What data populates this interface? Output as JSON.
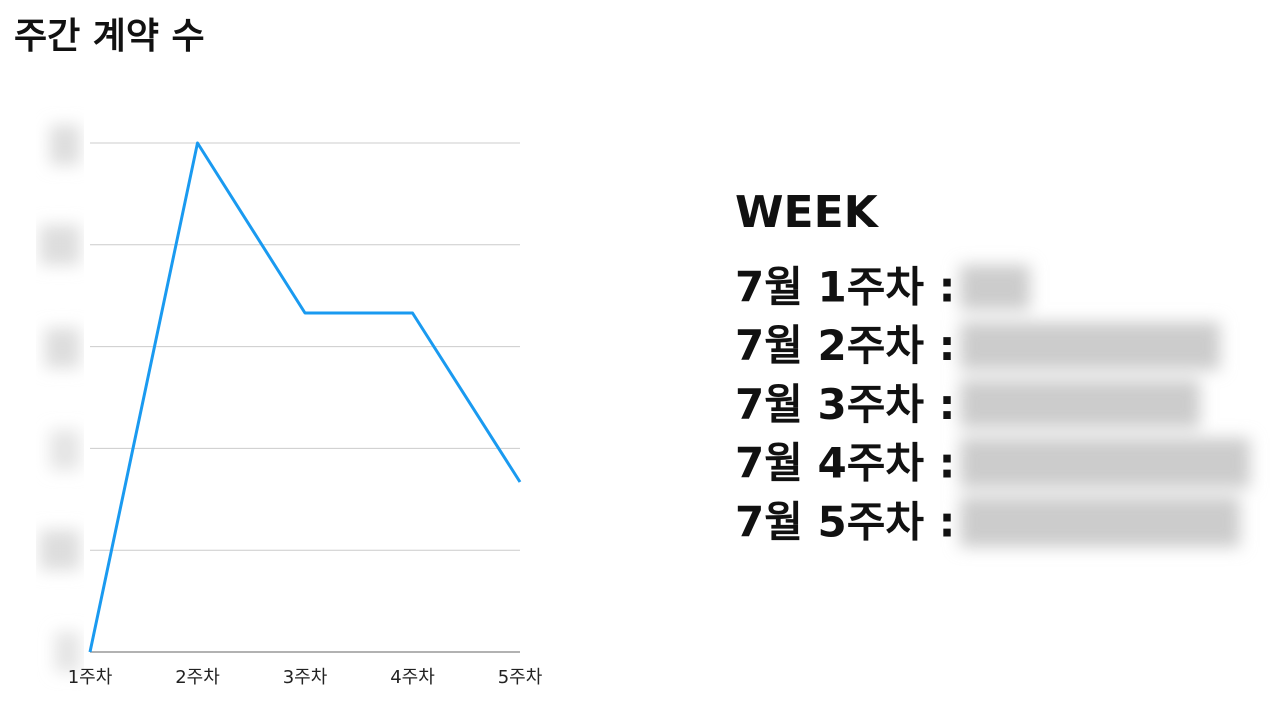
{
  "chart_data": {
    "type": "line",
    "title": "주간 계약 수",
    "categories": [
      "1주차",
      "2주차",
      "3주차",
      "4주차",
      "5주차"
    ],
    "values": [
      0,
      5,
      3.33,
      3.33,
      1.67
    ],
    "color": "#1a9af0",
    "ylim": [
      0,
      5
    ],
    "yticks": [
      0,
      1,
      2,
      3,
      4,
      5
    ],
    "grid": true
  },
  "side_panel": {
    "title": "WEEK",
    "rows": [
      "7월 1주차 :",
      "7월 2주차 :",
      "7월 3주차 :",
      "7월 4주차 :",
      "7월 5주차 :"
    ]
  }
}
